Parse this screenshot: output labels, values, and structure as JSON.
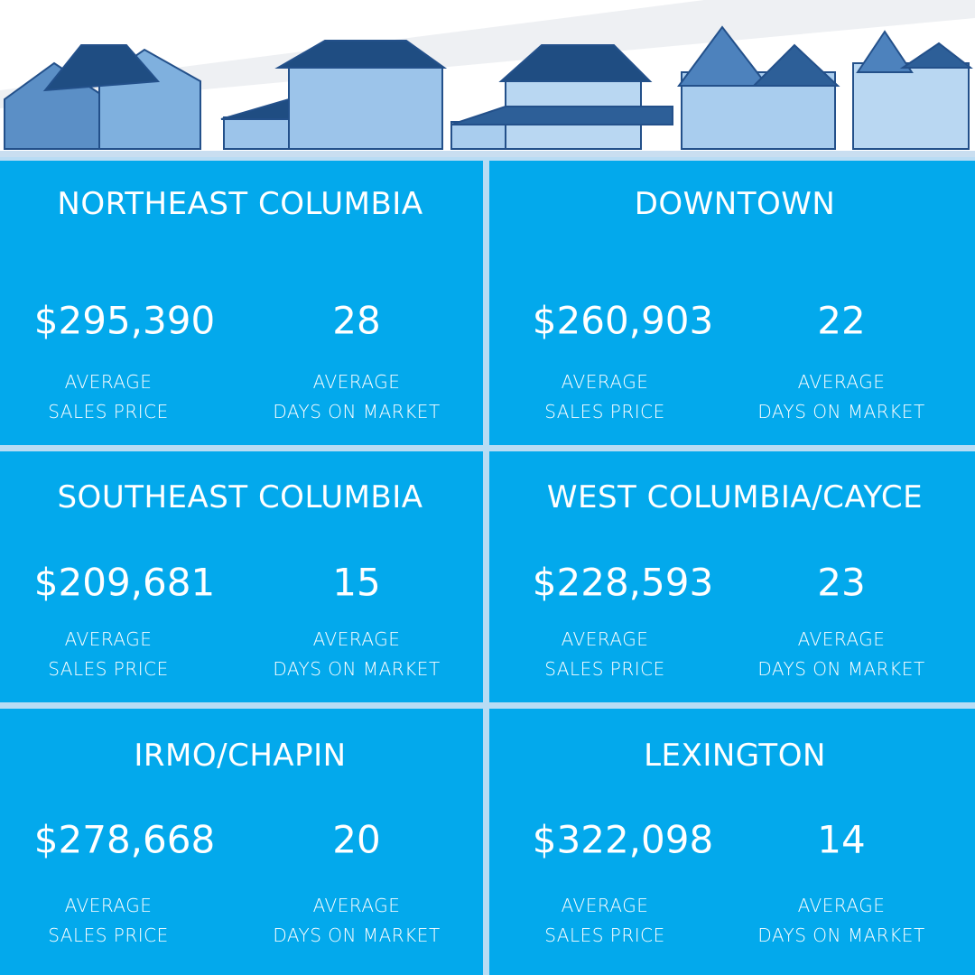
{
  "regions": [
    {
      "name": "NORTHEAST COLUMBIA",
      "price": "$295,390",
      "days": 28,
      "price_label": [
        "AVERAGE",
        "SALES PRICE"
      ],
      "days_label": [
        "AVERAGE",
        "DAYS ON MARKET"
      ]
    },
    {
      "name": "DOWNTOWN",
      "price": "$260,903",
      "days": 22,
      "price_label": [
        "AVERAGE",
        "SALES PRICE"
      ],
      "days_label": [
        "AVERAGE",
        "DAYS ON MARKET"
      ]
    },
    {
      "name": "SOUTHEAST COLUMBIA",
      "price": "$209,681",
      "days": 15,
      "price_label": [
        "AVERAGE",
        "SALES PRICE"
      ],
      "days_label": [
        "AVERAGE",
        "DAYS ON MARKET"
      ]
    },
    {
      "name": "WEST COLUMBIA/CAYCE",
      "price": "$228,593",
      "days": 23,
      "price_label": [
        "AVERAGE",
        "SALES PRICE"
      ],
      "days_label": [
        "AVERAGE",
        "DAYS ON MARKET"
      ]
    },
    {
      "name": "IRMO/CHAPIN",
      "price": "$278,668",
      "days": 20,
      "price_label": [
        "AVERAGE",
        "SALES PRICE"
      ],
      "days_label": [
        "AVERAGE",
        "DAYS ON MARKET"
      ]
    },
    {
      "name": "LEXINGTON",
      "price": "$322,098",
      "days": 14,
      "price_label": [
        "AVERAGE",
        "SALES PRICE"
      ],
      "days_label": [
        "AVERAGE",
        "DAYS ON MARKET"
      ]
    }
  ]
}
